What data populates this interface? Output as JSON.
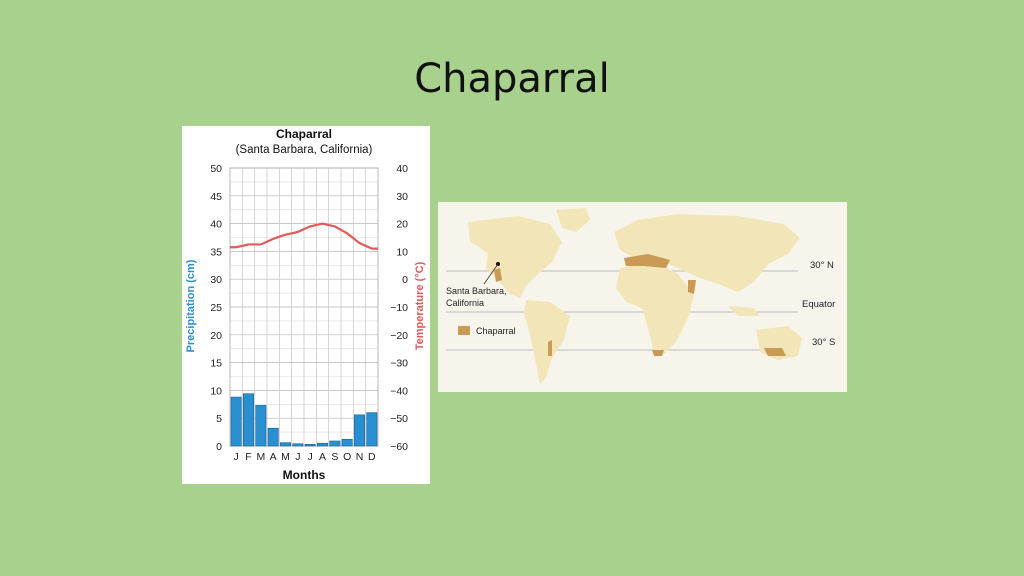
{
  "slide": {
    "title": "Chaparral"
  },
  "chart_data": {
    "type": "bar",
    "title": "Chaparral",
    "subtitle": "(Santa Barbara, California)",
    "xlabel": "Months",
    "categories": [
      "J",
      "F",
      "M",
      "A",
      "M",
      "J",
      "J",
      "A",
      "S",
      "O",
      "N",
      "D"
    ],
    "y_left": {
      "label": "Precipitation (cm)",
      "ticks": [
        "50",
        "45",
        "40",
        "35",
        "30",
        "25",
        "20",
        "15",
        "10",
        "5",
        "0"
      ],
      "ylim": [
        0,
        50
      ]
    },
    "y_right": {
      "label": "Temperature (°C)",
      "ticks": [
        "40",
        "30",
        "20",
        "10",
        "0",
        "−10",
        "−20",
        "−30",
        "−40",
        "−50",
        "−60"
      ],
      "ylim": [
        -60,
        40
      ]
    },
    "grid": true,
    "series": [
      {
        "name": "Precipitation",
        "type": "bar",
        "axis": "left",
        "color": "#2a8fd0",
        "values": [
          8.8,
          9.4,
          7.3,
          3.2,
          0.6,
          0.4,
          0.3,
          0.5,
          0.9,
          1.2,
          5.6,
          6.0
        ]
      },
      {
        "name": "Temperature",
        "type": "line",
        "axis": "right",
        "color": "#e05a5a",
        "values": [
          11.5,
          12.5,
          12.5,
          14.5,
          16,
          17,
          19,
          20,
          19,
          16.5,
          13,
          11
        ]
      }
    ]
  },
  "map": {
    "lat_labels": {
      "n30": "30° N",
      "equator": "Equator",
      "s30": "30° S"
    },
    "location_label_1": "Santa Barbara,",
    "location_label_2": "California",
    "legend_label": "Chaparral",
    "colors": {
      "land": "#f2e6b8",
      "chaparral": "#c89a55",
      "ocean": "#f7f4ec",
      "line": "#b8b8b8"
    }
  }
}
